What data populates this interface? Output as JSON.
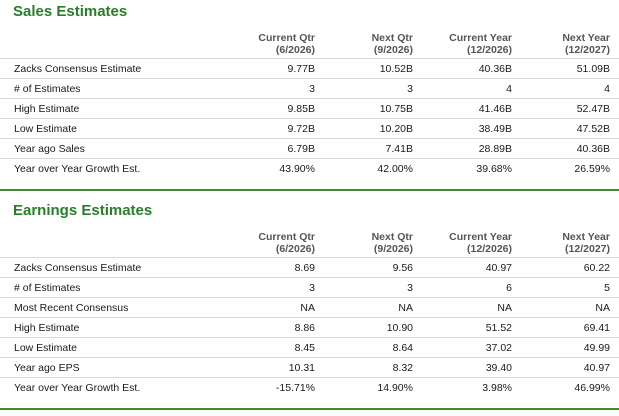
{
  "sales": {
    "title": "Sales Estimates",
    "columns": [
      {
        "line1": "Current Qtr",
        "line2": "(6/2026)"
      },
      {
        "line1": "Next Qtr",
        "line2": "(9/2026)"
      },
      {
        "line1": "Current Year",
        "line2": "(12/2026)"
      },
      {
        "line1": "Next Year",
        "line2": "(12/2027)"
      }
    ],
    "rows": [
      {
        "label": "Zacks Consensus Estimate",
        "values": [
          "9.77B",
          "10.52B",
          "40.36B",
          "51.09B"
        ]
      },
      {
        "label": "# of Estimates",
        "values": [
          "3",
          "3",
          "4",
          "4"
        ]
      },
      {
        "label": "High Estimate",
        "values": [
          "9.85B",
          "10.75B",
          "41.46B",
          "52.47B"
        ]
      },
      {
        "label": "Low Estimate",
        "values": [
          "9.72B",
          "10.20B",
          "38.49B",
          "47.52B"
        ]
      },
      {
        "label": "Year ago Sales",
        "values": [
          "6.79B",
          "7.41B",
          "28.89B",
          "40.36B"
        ]
      },
      {
        "label": "Year over Year Growth Est.",
        "values": [
          "43.90%",
          "42.00%",
          "39.68%",
          "26.59%"
        ]
      }
    ]
  },
  "earnings": {
    "title": "Earnings Estimates",
    "columns": [
      {
        "line1": "Current Qtr",
        "line2": "(6/2026)"
      },
      {
        "line1": "Next Qtr",
        "line2": "(9/2026)"
      },
      {
        "line1": "Current Year",
        "line2": "(12/2026)"
      },
      {
        "line1": "Next Year",
        "line2": "(12/2027)"
      }
    ],
    "rows": [
      {
        "label": "Zacks Consensus Estimate",
        "values": [
          "8.69",
          "9.56",
          "40.97",
          "60.22"
        ]
      },
      {
        "label": "# of Estimates",
        "values": [
          "3",
          "3",
          "6",
          "5"
        ]
      },
      {
        "label": "Most Recent Consensus",
        "values": [
          "NA",
          "NA",
          "NA",
          "NA"
        ]
      },
      {
        "label": "High Estimate",
        "values": [
          "8.86",
          "10.90",
          "51.52",
          "69.41"
        ]
      },
      {
        "label": "Low Estimate",
        "values": [
          "8.45",
          "8.64",
          "37.02",
          "49.99"
        ]
      },
      {
        "label": "Year ago EPS",
        "values": [
          "10.31",
          "8.32",
          "39.40",
          "40.97"
        ]
      },
      {
        "label": "Year over Year Growth Est.",
        "values": [
          "-15.71%",
          "14.90%",
          "3.98%",
          "46.99%"
        ]
      }
    ]
  },
  "colors": {
    "accent": "#2a7d2a",
    "rule": "#3b8e2b",
    "row_border": "#d9d9d9"
  }
}
